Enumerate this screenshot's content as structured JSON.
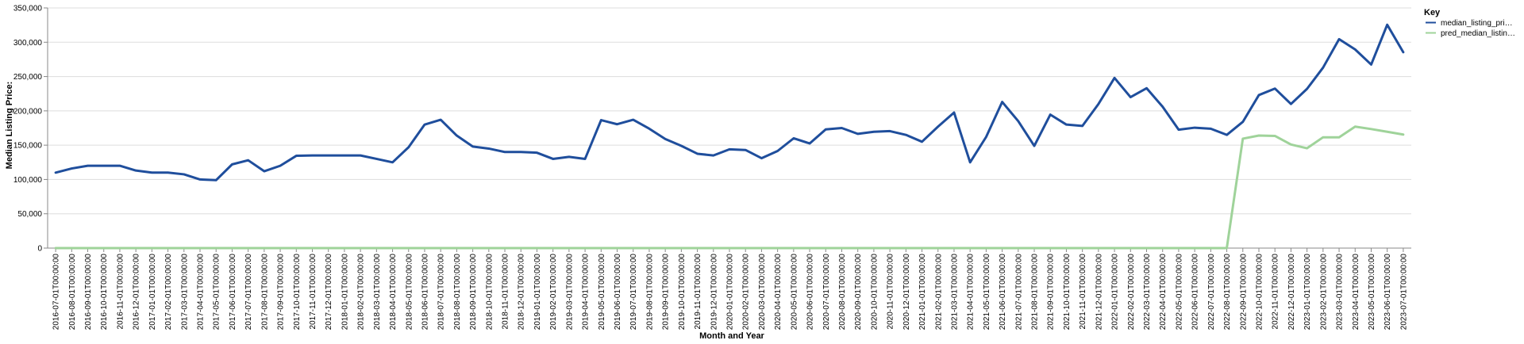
{
  "chart_data": {
    "type": "line",
    "xlabel": "Month and Year",
    "ylabel": "Median Listing Price:",
    "ylim": [
      0,
      350000
    ],
    "y_ticks": [
      "0",
      "50,000",
      "100,000",
      "150,000",
      "200,000",
      "250,000",
      "300,000",
      "350,000"
    ],
    "grid": true,
    "legend": {
      "title": "Key",
      "position": "top-right"
    },
    "x": [
      "2016-07-01T00:00:00",
      "2016-08-01T00:00:00",
      "2016-09-01T00:00:00",
      "2016-10-01T00:00:00",
      "2016-11-01T00:00:00",
      "2016-12-01T00:00:00",
      "2017-01-01T00:00:00",
      "2017-02-01T00:00:00",
      "2017-03-01T00:00:00",
      "2017-04-01T00:00:00",
      "2017-05-01T00:00:00",
      "2017-06-01T00:00:00",
      "2017-07-01T00:00:00",
      "2017-08-01T00:00:00",
      "2017-09-01T00:00:00",
      "2017-10-01T00:00:00",
      "2017-11-01T00:00:00",
      "2017-12-01T00:00:00",
      "2018-01-01T00:00:00",
      "2018-02-01T00:00:00",
      "2018-03-01T00:00:00",
      "2018-04-01T00:00:00",
      "2018-05-01T00:00:00",
      "2018-06-01T00:00:00",
      "2018-07-01T00:00:00",
      "2018-08-01T00:00:00",
      "2018-09-01T00:00:00",
      "2018-10-01T00:00:00",
      "2018-11-01T00:00:00",
      "2018-12-01T00:00:00",
      "2019-01-01T00:00:00",
      "2019-02-01T00:00:00",
      "2019-03-01T00:00:00",
      "2019-04-01T00:00:00",
      "2019-05-01T00:00:00",
      "2019-06-01T00:00:00",
      "2019-07-01T00:00:00",
      "2019-08-01T00:00:00",
      "2019-09-01T00:00:00",
      "2019-10-01T00:00:00",
      "2019-11-01T00:00:00",
      "2019-12-01T00:00:00",
      "2020-01-01T00:00:00",
      "2020-02-01T00:00:00",
      "2020-03-01T00:00:00",
      "2020-04-01T00:00:00",
      "2020-05-01T00:00:00",
      "2020-06-01T00:00:00",
      "2020-07-01T00:00:00",
      "2020-08-01T00:00:00",
      "2020-09-01T00:00:00",
      "2020-10-01T00:00:00",
      "2020-11-01T00:00:00",
      "2020-12-01T00:00:00",
      "2021-01-01T00:00:00",
      "2021-02-01T00:00:00",
      "2021-03-01T00:00:00",
      "2021-04-01T00:00:00",
      "2021-05-01T00:00:00",
      "2021-06-01T00:00:00",
      "2021-07-01T00:00:00",
      "2021-08-01T00:00:00",
      "2021-09-01T00:00:00",
      "2021-10-01T00:00:00",
      "2021-11-01T00:00:00",
      "2021-12-01T00:00:00",
      "2022-01-01T00:00:00",
      "2022-02-01T00:00:00",
      "2022-03-01T00:00:00",
      "2022-04-01T00:00:00",
      "2022-05-01T00:00:00",
      "2022-06-01T00:00:00",
      "2022-07-01T00:00:00",
      "2022-08-01T00:00:00",
      "2022-09-01T00:00:00",
      "2022-10-01T00:00:00",
      "2022-11-01T00:00:00",
      "2022-12-01T00:00:00",
      "2023-01-01T00:00:00",
      "2023-02-01T00:00:00",
      "2023-03-01T00:00:00",
      "2023-04-01T00:00:00",
      "2023-05-01T00:00:00",
      "2023-06-01T00:00:00",
      "2023-07-01T00:00:00"
    ],
    "series": [
      {
        "name": "median_listing_pri…",
        "color": "#1f4e9c",
        "values": [
          110000,
          116000,
          120000,
          120000,
          120000,
          113000,
          110000,
          110000,
          107500,
          100000,
          99000,
          122000,
          128000,
          112000,
          120000,
          134500,
          135000,
          135000,
          135000,
          135000,
          130000,
          125000,
          147000,
          180000,
          187000,
          164000,
          148000,
          145000,
          140000,
          140000,
          139000,
          130000,
          133000,
          130000,
          186500,
          180500,
          187000,
          174000,
          159000,
          149000,
          137500,
          135000,
          144000,
          143000,
          131000,
          141500,
          160000,
          152500,
          173000,
          175000,
          166500,
          169500,
          170500,
          165000,
          155000,
          177000,
          197500,
          125000,
          162000,
          213000,
          185000,
          149000,
          194500,
          180000,
          178000,
          210000,
          248000,
          220000,
          233000,
          206000,
          172500,
          175500,
          174000,
          165000,
          184000,
          223000,
          232500,
          210000,
          232000,
          263000,
          304500,
          289500,
          267500,
          325500,
          285500
        ]
      },
      {
        "name": "pred_median_listin…",
        "color": "#9fd39a",
        "values": [
          0,
          0,
          0,
          0,
          0,
          0,
          0,
          0,
          0,
          0,
          0,
          0,
          0,
          0,
          0,
          0,
          0,
          0,
          0,
          0,
          0,
          0,
          0,
          0,
          0,
          0,
          0,
          0,
          0,
          0,
          0,
          0,
          0,
          0,
          0,
          0,
          0,
          0,
          0,
          0,
          0,
          0,
          0,
          0,
          0,
          0,
          0,
          0,
          0,
          0,
          0,
          0,
          0,
          0,
          0,
          0,
          0,
          0,
          0,
          0,
          0,
          0,
          0,
          0,
          0,
          0,
          0,
          0,
          0,
          0,
          0,
          0,
          0,
          0,
          159500,
          164000,
          163500,
          151000,
          145500,
          161500,
          161500,
          177000,
          173500,
          169500,
          165500
        ]
      }
    ]
  }
}
